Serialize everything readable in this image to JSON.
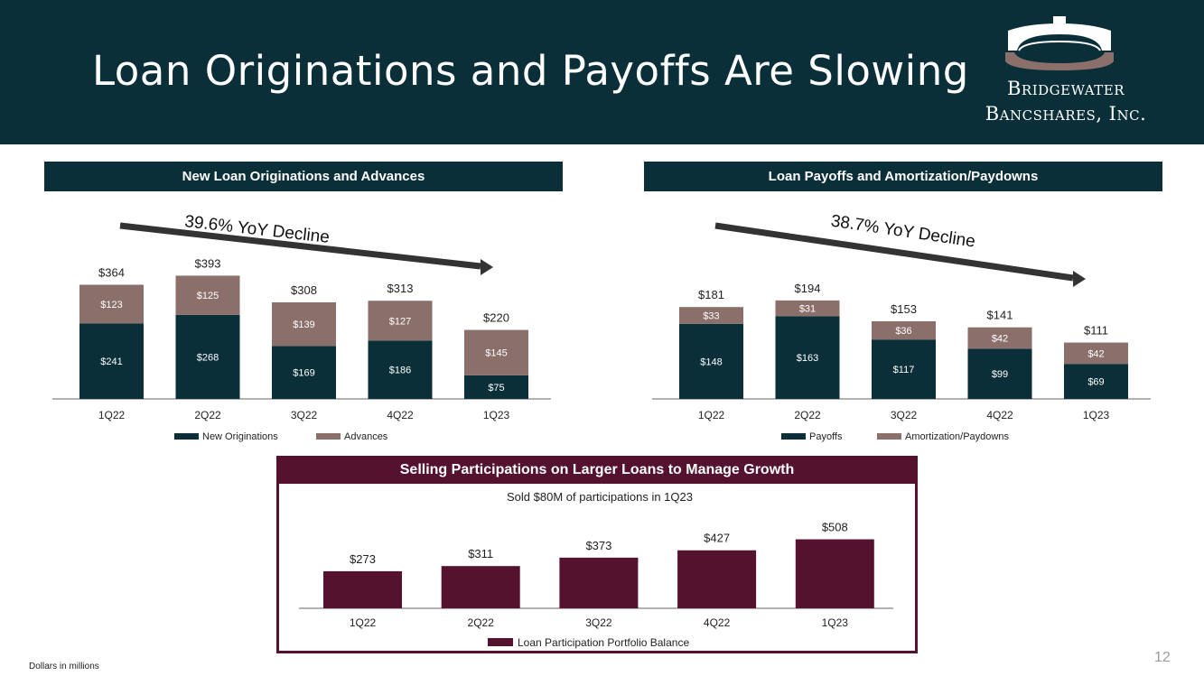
{
  "slide": {
    "title": "Loan Originations and Payoffs Are Slowing",
    "footnote": "Dollars in millions",
    "page_number": "12"
  },
  "logo": {
    "line1": "Bridgewater",
    "line2": "Bancshares, Inc."
  },
  "colors": {
    "dark_teal": "#0a2f38",
    "taupe": "#8b6f6a",
    "maroon": "#55122f",
    "arrow": "#333333"
  },
  "chart_data": [
    {
      "id": "originations",
      "type": "bar",
      "stacked": true,
      "title": "New Loan Originations and Advances",
      "annotation": "39.6% YoY Decline",
      "categories": [
        "1Q22",
        "2Q22",
        "3Q22",
        "4Q22",
        "1Q23"
      ],
      "series": [
        {
          "name": "New Originations",
          "values": [
            241,
            268,
            169,
            186,
            75
          ],
          "labels": [
            "$241",
            "$268",
            "$169",
            "$186",
            "$75"
          ]
        },
        {
          "name": "Advances",
          "values": [
            123,
            125,
            139,
            127,
            145
          ],
          "labels": [
            "$123",
            "$125",
            "$139",
            "$127",
            "$145"
          ]
        }
      ],
      "totals": [
        364,
        393,
        308,
        313,
        220
      ],
      "total_labels": [
        "$364",
        "$393",
        "$308",
        "$313",
        "$220"
      ],
      "ylim": [
        0,
        400
      ]
    },
    {
      "id": "payoffs",
      "type": "bar",
      "stacked": true,
      "title": "Loan Payoffs and Amortization/Paydowns",
      "annotation": "38.7% YoY Decline",
      "categories": [
        "1Q22",
        "2Q22",
        "3Q22",
        "4Q22",
        "1Q23"
      ],
      "series": [
        {
          "name": "Payoffs",
          "values": [
            148,
            163,
            117,
            99,
            69
          ],
          "labels": [
            "$148",
            "$163",
            "$117",
            "$99",
            "$69"
          ]
        },
        {
          "name": "Amortization/Paydowns",
          "values": [
            33,
            31,
            36,
            42,
            42
          ],
          "labels": [
            "$33",
            "$31",
            "$36",
            "$42",
            "$42"
          ]
        }
      ],
      "totals": [
        181,
        194,
        153,
        141,
        111
      ],
      "total_labels": [
        "$181",
        "$194",
        "$153",
        "$141",
        "$111"
      ],
      "ylim": [
        0,
        200
      ]
    },
    {
      "id": "participations",
      "type": "bar",
      "title": "Selling Participations on Larger Loans to Manage Growth",
      "subtitle": "Sold $80M of participations in 1Q23",
      "categories": [
        "1Q22",
        "2Q22",
        "3Q22",
        "4Q22",
        "1Q23"
      ],
      "series": [
        {
          "name": "Loan Participation Portfolio Balance",
          "values": [
            273,
            311,
            373,
            427,
            508
          ],
          "labels": [
            "$273",
            "$311",
            "$373",
            "$427",
            "$508"
          ]
        }
      ],
      "ylim": [
        0,
        520
      ]
    }
  ]
}
